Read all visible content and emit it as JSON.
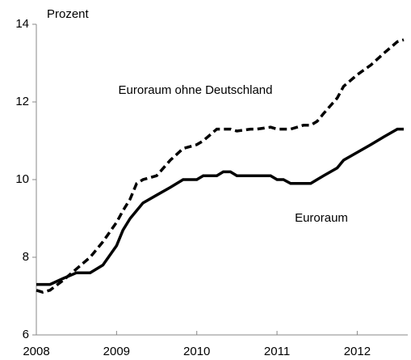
{
  "chart_data": {
    "type": "line",
    "y_label": "Prozent",
    "x": [
      2008,
      2008.08,
      2008.17,
      2008.33,
      2008.5,
      2008.67,
      2008.83,
      2009,
      2009.08,
      2009.17,
      2009.25,
      2009.33,
      2009.5,
      2009.67,
      2009.83,
      2010,
      2010.08,
      2010.25,
      2010.33,
      2010.42,
      2010.5,
      2010.67,
      2010.75,
      2010.92,
      2011,
      2011.08,
      2011.17,
      2011.33,
      2011.42,
      2011.5,
      2011.58,
      2011.75,
      2011.83,
      2012,
      2012.17,
      2012.33,
      2012.5,
      2012.58
    ],
    "series": [
      {
        "name": "Euroraum ohne Deutschland",
        "color": "#000000",
        "line_style": "dashed",
        "values": [
          7.15,
          7.1,
          7.15,
          7.4,
          7.7,
          8.0,
          8.4,
          8.9,
          9.2,
          9.5,
          9.9,
          10.0,
          10.1,
          10.5,
          10.8,
          10.9,
          11.0,
          11.3,
          11.3,
          11.3,
          11.25,
          11.3,
          11.3,
          11.35,
          11.3,
          11.3,
          11.3,
          11.4,
          11.4,
          11.5,
          11.7,
          12.1,
          12.4,
          12.7,
          12.95,
          13.25,
          13.55,
          13.6
        ]
      },
      {
        "name": "Euroraum",
        "color": "#000000",
        "line_style": "solid",
        "values": [
          7.3,
          7.3,
          7.3,
          7.45,
          7.6,
          7.6,
          7.8,
          8.3,
          8.7,
          9.0,
          9.2,
          9.4,
          9.6,
          9.8,
          10.0,
          10.0,
          10.1,
          10.1,
          10.2,
          10.2,
          10.1,
          10.1,
          10.1,
          10.1,
          10.0,
          10.0,
          9.9,
          9.9,
          9.9,
          10.0,
          10.1,
          10.3,
          10.5,
          10.7,
          10.9,
          11.1,
          11.3,
          11.3
        ]
      }
    ],
    "xlim": [
      2008,
      2012.63
    ],
    "xticks": [
      2008,
      2009,
      2010,
      2011,
      2012
    ],
    "ylim": [
      6,
      14
    ],
    "yticks": [
      6,
      8,
      10,
      12,
      14
    ],
    "grid": false
  }
}
